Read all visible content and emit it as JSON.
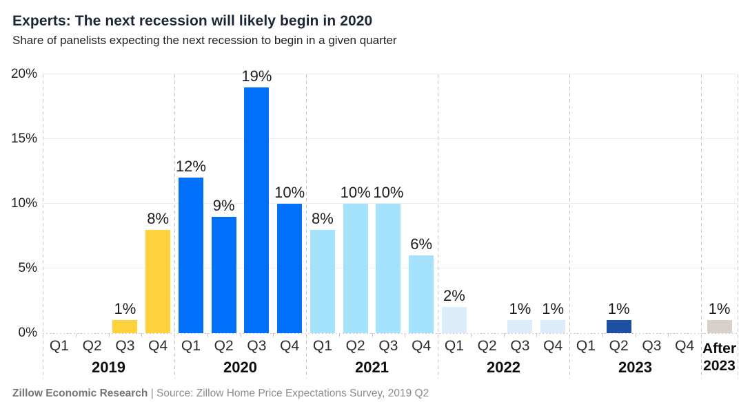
{
  "header": {
    "title": "Experts: The next recession will likely begin in 2020",
    "subtitle": "Share of panelists expecting the next recession to begin in a given quarter"
  },
  "footer": {
    "brand": "Zillow Economic Research",
    "separator": " | ",
    "source": "Source: Zillow Home Price Expectations Survey, 2019 Q2"
  },
  "colors": {
    "title_text": "#1a2535",
    "gridline": "#eeeeee",
    "separator_dash": "#c9c9c9",
    "baseline_dot": "#c6c6c6",
    "bar_2019": "#FFD23B",
    "bar_2020": "#0070FA",
    "bar_2021": "#A5E2FD",
    "bar_2022": "#DDECFA",
    "bar_2023": "#1C4FA1",
    "bar_after_2023": "#D8D1CB"
  },
  "chart_data": {
    "type": "bar",
    "title": "Experts: The next recession will likely begin in 2020",
    "subtitle": "Share of panelists expecting the next recession to begin in a given quarter",
    "xlabel": "",
    "ylabel": "Share of panelists",
    "ylim": [
      0,
      20
    ],
    "yticks": [
      0,
      5,
      10,
      15,
      20
    ],
    "ytick_labels": [
      "0%",
      "5%",
      "10%",
      "15%",
      "20%"
    ],
    "grid": "horizontal solid gridlines; dashed vertical separators between year groups; dotted zero baseline",
    "legend": "none",
    "value_label_suffix": "%",
    "groups": [
      {
        "label": "2019",
        "label_lines": [
          "2019"
        ],
        "color": "#FFD23B",
        "categories": [
          "Q1",
          "Q2",
          "Q3",
          "Q4"
        ],
        "values": [
          0,
          0,
          1,
          8
        ]
      },
      {
        "label": "2020",
        "label_lines": [
          "2020"
        ],
        "color": "#0070FA",
        "categories": [
          "Q1",
          "Q2",
          "Q3",
          "Q4"
        ],
        "values": [
          12,
          9,
          19,
          10
        ]
      },
      {
        "label": "2021",
        "label_lines": [
          "2021"
        ],
        "color": "#A5E2FD",
        "categories": [
          "Q1",
          "Q2",
          "Q3",
          "Q4"
        ],
        "values": [
          8,
          10,
          10,
          6
        ]
      },
      {
        "label": "2022",
        "label_lines": [
          "2022"
        ],
        "color": "#DDECFA",
        "categories": [
          "Q1",
          "Q2",
          "Q3",
          "Q4"
        ],
        "values": [
          2,
          0,
          1,
          1
        ]
      },
      {
        "label": "2023",
        "label_lines": [
          "2023"
        ],
        "color": "#1C4FA1",
        "categories": [
          "Q1",
          "Q2",
          "Q3",
          "Q4"
        ],
        "values": [
          0,
          1,
          0,
          0
        ]
      },
      {
        "label": "After 2023",
        "label_lines": [
          "After",
          "2023"
        ],
        "color": "#D8D1CB",
        "categories": [
          ""
        ],
        "values": [
          1
        ]
      }
    ]
  }
}
